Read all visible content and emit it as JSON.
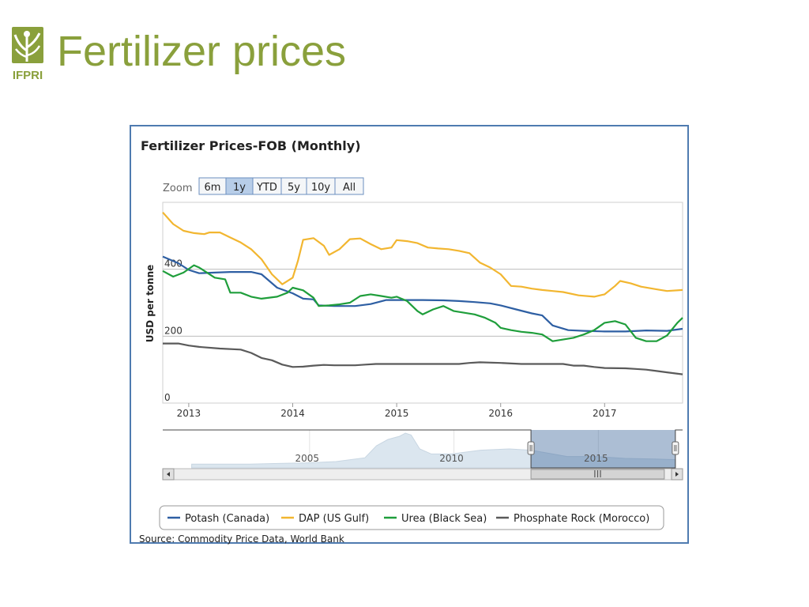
{
  "slide": {
    "title": "Fertilizer prices",
    "logo_text": "IFPRI"
  },
  "colors": {
    "title": "#8aa03c",
    "frame": "#4f7bb0",
    "potash": "#2e5fa3",
    "dap": "#f2b630",
    "urea": "#1f9e3b",
    "phosphate": "#5a5a5a"
  },
  "zoom": {
    "label": "Zoom",
    "buttons": [
      "6m",
      "1y",
      "YTD",
      "5y",
      "10y",
      "All"
    ],
    "selected": "1y"
  },
  "navigator": {
    "year_labels": [
      "2005",
      "2010",
      "2015"
    ],
    "scroll_grip": "III"
  },
  "source": "Source: Commodity Price Data, World Bank",
  "chart_data": {
    "type": "line",
    "title": "Fertilizer Prices-FOB (Monthly)",
    "xlabel": "",
    "ylabel": "USD per tonne",
    "x_ticks": [
      "2013",
      "2014",
      "2015",
      "2016",
      "2017"
    ],
    "y_ticks": [
      "0",
      "200",
      "400"
    ],
    "ylim": [
      0,
      600
    ],
    "xlim": [
      2012.75,
      2017.75
    ],
    "grid": true,
    "legend": [
      "Potash (Canada)",
      "DAP (US Gulf)",
      "Urea (Black Sea)",
      "Phosphate Rock (Morocco)"
    ],
    "legend_position": "bottom",
    "series": [
      {
        "name": "Potash (Canada)",
        "color": "#2e5fa3",
        "points": [
          [
            2012.75,
            438
          ],
          [
            2012.9,
            418
          ],
          [
            2013.0,
            398
          ],
          [
            2013.1,
            388
          ],
          [
            2013.25,
            390
          ],
          [
            2013.4,
            392
          ],
          [
            2013.6,
            392
          ],
          [
            2013.7,
            385
          ],
          [
            2013.85,
            345
          ],
          [
            2014.0,
            328
          ],
          [
            2014.1,
            312
          ],
          [
            2014.2,
            310
          ],
          [
            2014.25,
            292
          ],
          [
            2014.4,
            290
          ],
          [
            2014.6,
            290
          ],
          [
            2014.75,
            296
          ],
          [
            2014.9,
            308
          ],
          [
            2015.0,
            308
          ],
          [
            2015.15,
            308
          ],
          [
            2015.25,
            308
          ],
          [
            2015.45,
            307
          ],
          [
            2015.6,
            305
          ],
          [
            2015.75,
            302
          ],
          [
            2015.9,
            298
          ],
          [
            2016.0,
            292
          ],
          [
            2016.15,
            280
          ],
          [
            2016.3,
            268
          ],
          [
            2016.4,
            262
          ],
          [
            2016.5,
            232
          ],
          [
            2016.65,
            218
          ],
          [
            2016.8,
            216
          ],
          [
            2017.0,
            214
          ],
          [
            2017.2,
            214
          ],
          [
            2017.4,
            217
          ],
          [
            2017.6,
            216
          ],
          [
            2017.75,
            222
          ]
        ]
      },
      {
        "name": "DAP (US Gulf)",
        "color": "#f2b630",
        "points": [
          [
            2012.75,
            570
          ],
          [
            2012.85,
            535
          ],
          [
            2012.95,
            515
          ],
          [
            2013.05,
            508
          ],
          [
            2013.15,
            505
          ],
          [
            2013.2,
            510
          ],
          [
            2013.3,
            510
          ],
          [
            2013.4,
            495
          ],
          [
            2013.5,
            480
          ],
          [
            2013.6,
            460
          ],
          [
            2013.7,
            430
          ],
          [
            2013.8,
            385
          ],
          [
            2013.9,
            355
          ],
          [
            2014.0,
            375
          ],
          [
            2014.05,
            425
          ],
          [
            2014.1,
            488
          ],
          [
            2014.2,
            493
          ],
          [
            2014.3,
            470
          ],
          [
            2014.35,
            443
          ],
          [
            2014.45,
            460
          ],
          [
            2014.55,
            490
          ],
          [
            2014.65,
            492
          ],
          [
            2014.75,
            475
          ],
          [
            2014.85,
            460
          ],
          [
            2014.95,
            465
          ],
          [
            2015.0,
            487
          ],
          [
            2015.1,
            484
          ],
          [
            2015.2,
            478
          ],
          [
            2015.3,
            465
          ],
          [
            2015.4,
            462
          ],
          [
            2015.5,
            460
          ],
          [
            2015.6,
            455
          ],
          [
            2015.7,
            448
          ],
          [
            2015.8,
            420
          ],
          [
            2015.9,
            405
          ],
          [
            2016.0,
            385
          ],
          [
            2016.1,
            350
          ],
          [
            2016.2,
            348
          ],
          [
            2016.3,
            342
          ],
          [
            2016.4,
            338
          ],
          [
            2016.5,
            335
          ],
          [
            2016.6,
            332
          ],
          [
            2016.75,
            322
          ],
          [
            2016.9,
            318
          ],
          [
            2017.0,
            325
          ],
          [
            2017.1,
            350
          ],
          [
            2017.15,
            365
          ],
          [
            2017.25,
            358
          ],
          [
            2017.35,
            348
          ],
          [
            2017.5,
            340
          ],
          [
            2017.6,
            335
          ],
          [
            2017.75,
            338
          ]
        ]
      },
      {
        "name": "Urea (Black Sea)",
        "color": "#1f9e3b",
        "points": [
          [
            2012.75,
            395
          ],
          [
            2012.85,
            378
          ],
          [
            2012.95,
            390
          ],
          [
            2013.05,
            412
          ],
          [
            2013.1,
            405
          ],
          [
            2013.25,
            375
          ],
          [
            2013.35,
            370
          ],
          [
            2013.4,
            330
          ],
          [
            2013.5,
            330
          ],
          [
            2013.6,
            318
          ],
          [
            2013.7,
            312
          ],
          [
            2013.85,
            318
          ],
          [
            2013.95,
            330
          ],
          [
            2014.0,
            345
          ],
          [
            2014.1,
            337
          ],
          [
            2014.2,
            315
          ],
          [
            2014.25,
            290
          ],
          [
            2014.35,
            292
          ],
          [
            2014.45,
            295
          ],
          [
            2014.55,
            300
          ],
          [
            2014.65,
            320
          ],
          [
            2014.75,
            325
          ],
          [
            2014.85,
            320
          ],
          [
            2014.95,
            315
          ],
          [
            2015.0,
            318
          ],
          [
            2015.1,
            305
          ],
          [
            2015.2,
            275
          ],
          [
            2015.25,
            265
          ],
          [
            2015.35,
            280
          ],
          [
            2015.45,
            290
          ],
          [
            2015.55,
            275
          ],
          [
            2015.65,
            270
          ],
          [
            2015.75,
            265
          ],
          [
            2015.85,
            255
          ],
          [
            2015.95,
            240
          ],
          [
            2016.0,
            225
          ],
          [
            2016.1,
            218
          ],
          [
            2016.2,
            213
          ],
          [
            2016.3,
            210
          ],
          [
            2016.4,
            205
          ],
          [
            2016.5,
            185
          ],
          [
            2016.6,
            190
          ],
          [
            2016.7,
            195
          ],
          [
            2016.8,
            205
          ],
          [
            2016.9,
            218
          ],
          [
            2017.0,
            240
          ],
          [
            2017.1,
            245
          ],
          [
            2017.2,
            235
          ],
          [
            2017.3,
            195
          ],
          [
            2017.4,
            185
          ],
          [
            2017.5,
            185
          ],
          [
            2017.6,
            202
          ],
          [
            2017.7,
            240
          ],
          [
            2017.75,
            255
          ]
        ]
      },
      {
        "name": "Phosphate Rock (Morocco)",
        "color": "#5a5a5a",
        "points": [
          [
            2012.75,
            178
          ],
          [
            2012.9,
            178
          ],
          [
            2013.0,
            172
          ],
          [
            2013.1,
            168
          ],
          [
            2013.3,
            163
          ],
          [
            2013.5,
            160
          ],
          [
            2013.6,
            150
          ],
          [
            2013.7,
            135
          ],
          [
            2013.8,
            128
          ],
          [
            2013.9,
            115
          ],
          [
            2014.0,
            108
          ],
          [
            2014.1,
            109
          ],
          [
            2014.2,
            112
          ],
          [
            2014.3,
            114
          ],
          [
            2014.4,
            113
          ],
          [
            2014.5,
            113
          ],
          [
            2014.6,
            113
          ],
          [
            2014.7,
            115
          ],
          [
            2014.8,
            117
          ],
          [
            2015.0,
            117
          ],
          [
            2015.2,
            117
          ],
          [
            2015.4,
            117
          ],
          [
            2015.6,
            117
          ],
          [
            2015.7,
            120
          ],
          [
            2015.8,
            122
          ],
          [
            2016.0,
            120
          ],
          [
            2016.2,
            117
          ],
          [
            2016.4,
            117
          ],
          [
            2016.6,
            117
          ],
          [
            2016.7,
            112
          ],
          [
            2016.8,
            112
          ],
          [
            2016.9,
            108
          ],
          [
            2017.0,
            105
          ],
          [
            2017.2,
            104
          ],
          [
            2017.3,
            102
          ],
          [
            2017.4,
            100
          ],
          [
            2017.5,
            96
          ],
          [
            2017.6,
            92
          ],
          [
            2017.75,
            86
          ]
        ]
      }
    ],
    "navigator": {
      "type": "area",
      "points": [
        [
          2001,
          6
        ],
        [
          2002,
          6
        ],
        [
          2003,
          6
        ],
        [
          2004,
          7
        ],
        [
          2005,
          8
        ],
        [
          2006,
          10
        ],
        [
          2007,
          16
        ],
        [
          2007.4,
          35
        ],
        [
          2007.8,
          45
        ],
        [
          2008.2,
          50
        ],
        [
          2008.4,
          55
        ],
        [
          2008.6,
          52
        ],
        [
          2008.9,
          30
        ],
        [
          2009.3,
          22
        ],
        [
          2010,
          22
        ],
        [
          2010.5,
          25
        ],
        [
          2011,
          28
        ],
        [
          2012,
          30
        ],
        [
          2012.75,
          28
        ],
        [
          2013.5,
          22
        ],
        [
          2014,
          18
        ],
        [
          2015,
          18
        ],
        [
          2016,
          15
        ],
        [
          2017,
          14
        ],
        [
          2017.75,
          13
        ]
      ],
      "xlim": [
        2000,
        2018
      ],
      "selected_range": [
        2012.75,
        2017.75
      ]
    }
  }
}
